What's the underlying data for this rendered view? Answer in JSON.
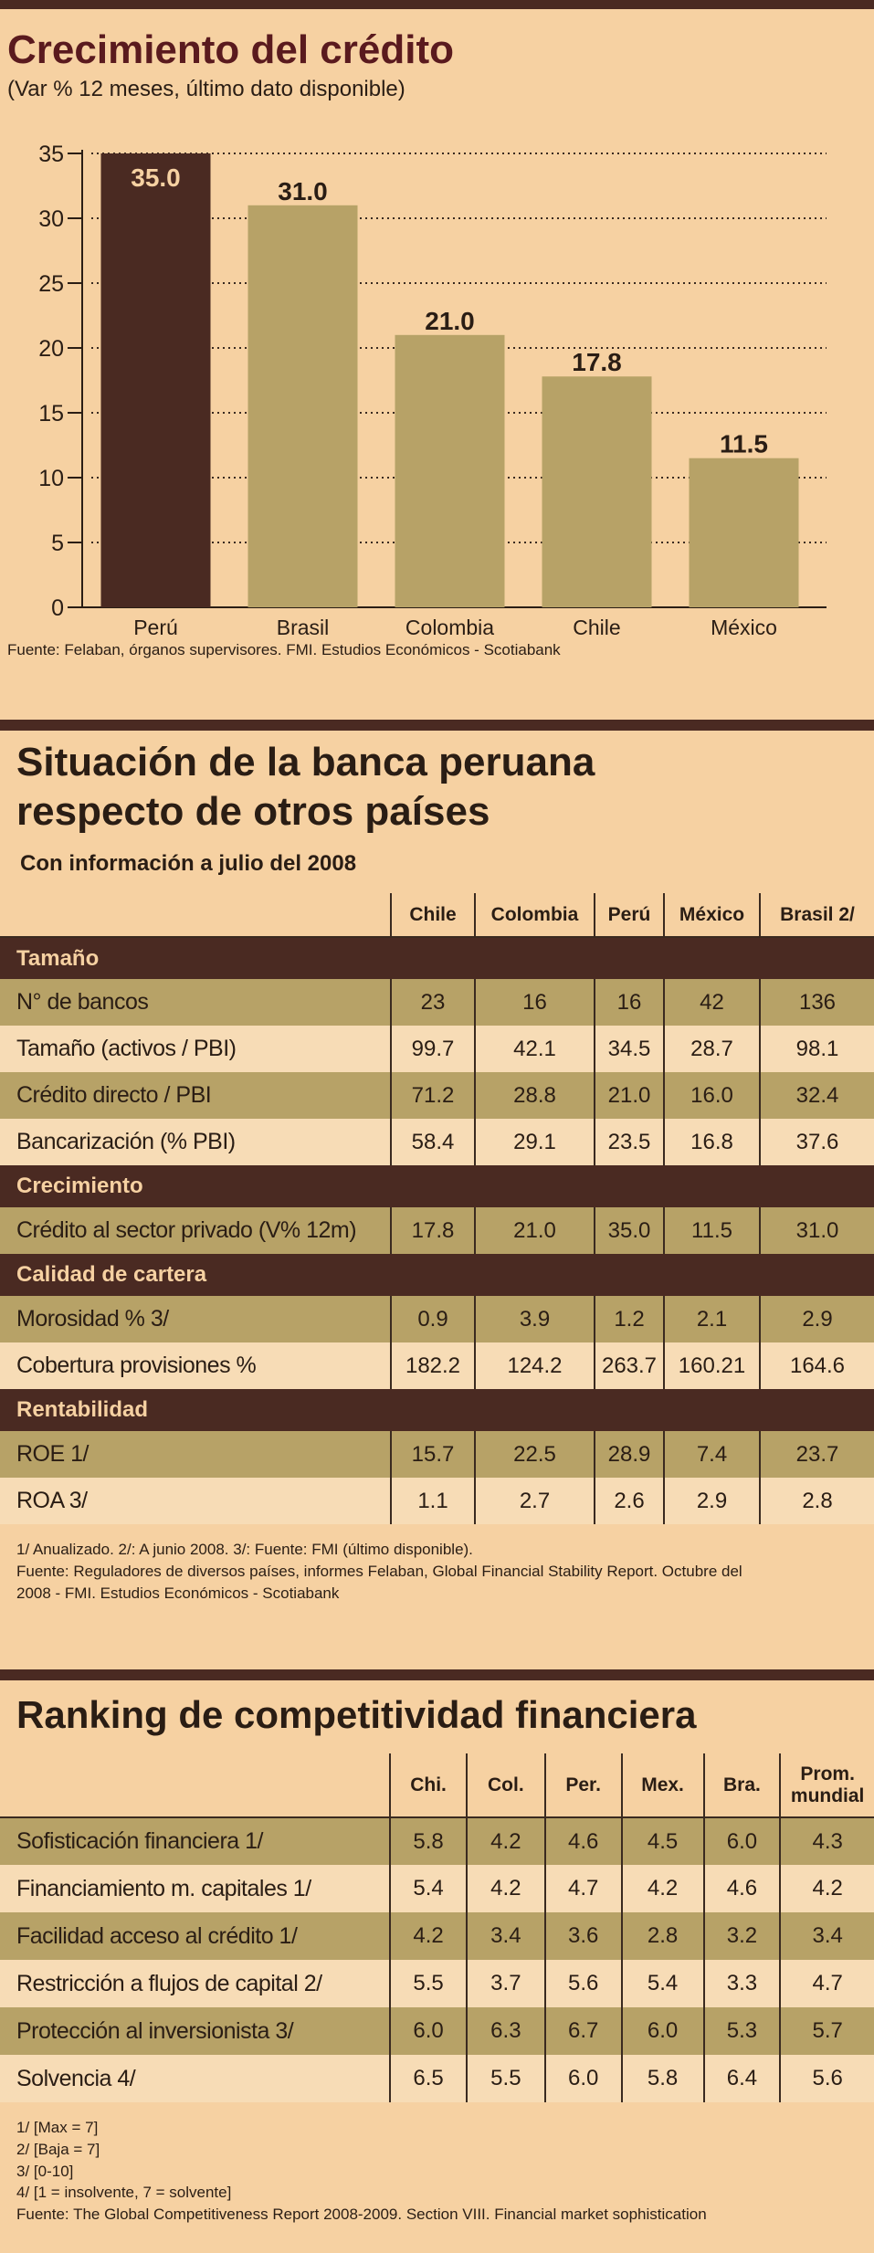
{
  "chart_section": {
    "title": "Crecimiento del crédito",
    "subtitle": "(Var % 12 meses, último dato disponible)",
    "source": "Fuente: Felaban, órganos supervisores. FMI. Estudios Económicos - Scotiabank"
  },
  "chart_data": {
    "type": "bar",
    "title": "Crecimiento del crédito",
    "subtitle": "(Var % 12 meses, último dato disponible)",
    "categories": [
      "Perú",
      "Brasil",
      "Colombia",
      "Chile",
      "México"
    ],
    "values": [
      35.0,
      31.0,
      21.0,
      17.8,
      11.5
    ],
    "value_labels": [
      "35.0",
      "31.0",
      "21.0",
      "17.8",
      "11.5"
    ],
    "ylim": [
      0,
      35
    ],
    "yticks": [
      0,
      5,
      10,
      15,
      20,
      25,
      30,
      35
    ],
    "grid": "dotted horizontal",
    "colors": [
      "#4a2a22",
      "#b7a267",
      "#b7a267",
      "#b7a267",
      "#b7a267"
    ]
  },
  "banca": {
    "title_line1": "Situación de la banca peruana",
    "title_line2": "respecto de otros países",
    "subtitle": "Con información a julio del 2008",
    "columns": [
      "Chile",
      "Colombia",
      "Perú",
      "México",
      "Brasil 2/"
    ],
    "rows": [
      {
        "type": "section",
        "label": "Tamaño"
      },
      {
        "type": "shade",
        "label": "N° de bancos",
        "values": [
          "23",
          "16",
          "16",
          "42",
          "136"
        ]
      },
      {
        "type": "plain",
        "label": "Tamaño (activos / PBI)",
        "values": [
          "99.7",
          "42.1",
          "34.5",
          "28.7",
          "98.1"
        ]
      },
      {
        "type": "shade",
        "label": "Crédito directo / PBI",
        "values": [
          "71.2",
          "28.8",
          "21.0",
          "16.0",
          "32.4"
        ]
      },
      {
        "type": "plain",
        "label": "Bancarización (% PBI)",
        "values": [
          "58.4",
          "29.1",
          "23.5",
          "16.8",
          "37.6"
        ]
      },
      {
        "type": "section",
        "label": "Crecimiento"
      },
      {
        "type": "shade",
        "label": "Crédito al sector privado (V% 12m)",
        "values": [
          "17.8",
          "21.0",
          "35.0",
          "11.5",
          "31.0"
        ]
      },
      {
        "type": "section",
        "label": "Calidad de cartera"
      },
      {
        "type": "shade",
        "label": "Morosidad % 3/",
        "values": [
          "0.9",
          "3.9",
          "1.2",
          "2.1",
          "2.9"
        ]
      },
      {
        "type": "plain",
        "label": "Cobertura provisiones %",
        "values": [
          "182.2",
          "124.2",
          "263.7",
          "160.21",
          "164.6"
        ]
      },
      {
        "type": "section",
        "label": "Rentabilidad"
      },
      {
        "type": "shade",
        "label": "ROE 1/",
        "values": [
          "15.7",
          "22.5",
          "28.9",
          "7.4",
          "23.7"
        ]
      },
      {
        "type": "plain",
        "label": "ROA 3/",
        "values": [
          "1.1",
          "2.7",
          "2.6",
          "2.9",
          "2.8"
        ]
      }
    ],
    "notes": [
      "1/ Anualizado.   2/: A junio 2008.   3/: Fuente: FMI (último disponible).",
      "Fuente: Reguladores de diversos países, informes Felaban, Global Financial Stability Report. Octubre del",
      "2008 - FMI. Estudios Económicos - Scotiabank"
    ]
  },
  "ranking": {
    "title": "Ranking de competitividad financiera",
    "columns": [
      "Chi.",
      "Col.",
      "Per.",
      "Mex.",
      "Bra.",
      "Prom. mundial"
    ],
    "rows": [
      {
        "type": "shade",
        "label": "Sofisticación financiera 1/",
        "values": [
          "5.8",
          "4.2",
          "4.6",
          "4.5",
          "6.0",
          "4.3"
        ]
      },
      {
        "type": "plain",
        "label": "Financiamiento m. capitales 1/",
        "values": [
          "5.4",
          "4.2",
          "4.7",
          "4.2",
          "4.6",
          "4.2"
        ]
      },
      {
        "type": "shade",
        "label": "Facilidad acceso al crédito 1/",
        "values": [
          "4.2",
          "3.4",
          "3.6",
          "2.8",
          "3.2",
          "3.4"
        ]
      },
      {
        "type": "plain",
        "label": "Restricción a flujos de capital 2/",
        "values": [
          "5.5",
          "3.7",
          "5.6",
          "5.4",
          "3.3",
          "4.7"
        ]
      },
      {
        "type": "shade",
        "label": "Protección al inversionista 3/",
        "values": [
          "6.0",
          "6.3",
          "6.7",
          "6.0",
          "5.3",
          "5.7"
        ]
      },
      {
        "type": "plain",
        "label": "Solvencia 4/",
        "values": [
          "6.5",
          "5.5",
          "6.0",
          "5.8",
          "6.4",
          "5.6"
        ]
      }
    ],
    "notes": [
      "1/ [Max = 7]",
      "2/ [Baja = 7]",
      "3/ [0-10]",
      "4/ [1 = insolvente, 7 = solvente]",
      "Fuente: The Global Competitiveness Report 2008-2009. Section VIII. Financial market sophistication"
    ]
  }
}
